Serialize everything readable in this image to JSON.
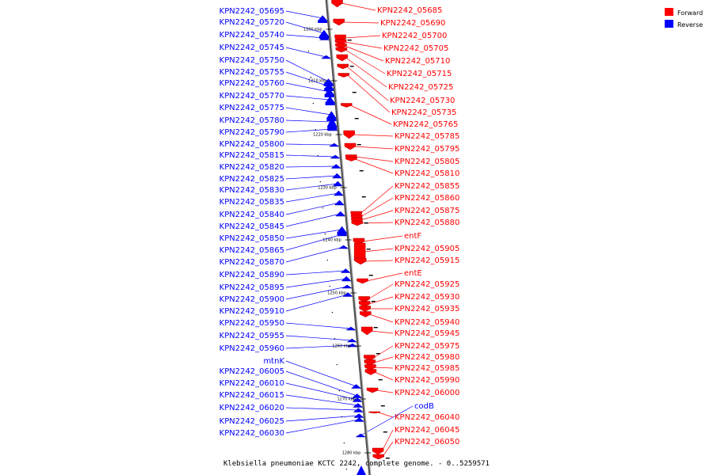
{
  "title": "Klebsiella pneumoniae KCTC 2242, complete genome. - 0..5259571",
  "legend": [
    {
      "label": "Forward",
      "color": "#ff0000"
    },
    {
      "label": "Reverse",
      "color": "#0000ff"
    }
  ],
  "colors": {
    "forward": "#ff0000",
    "reverse": "#0000ff",
    "backbone": "#888888"
  },
  "scale_ticks": [
    "1200 kbp",
    "1210 kbp",
    "1220 kbp",
    "1230 kbp",
    "1240 kbp",
    "1250 kbp",
    "1260 kbp",
    "1270 kbp",
    "1280 kbp"
  ],
  "reverse_genes": [
    "KPN2242_05695",
    "KPN2242_05720",
    "KPN2242_05740",
    "KPN2242_05745",
    "KPN2242_05750",
    "KPN2242_05755",
    "KPN2242_05760",
    "KPN2242_05770",
    "KPN2242_05775",
    "KPN2242_05780",
    "KPN2242_05790",
    "KPN2242_05800",
    "KPN2242_05815",
    "KPN2242_05820",
    "KPN2242_05825",
    "KPN2242_05830",
    "KPN2242_05835",
    "KPN2242_05840",
    "KPN2242_05845",
    "KPN2242_05850",
    "KPN2242_05865",
    "KPN2242_05870",
    "KPN2242_05890",
    "KPN2242_05895",
    "KPN2242_05900",
    "KPN2242_05910",
    "KPN2242_05950",
    "KPN2242_05955",
    "KPN2242_05960",
    "mtnK",
    "KPN2242_06005",
    "KPN2242_06010",
    "KPN2242_06015",
    "KPN2242_06020",
    "KPN2242_06025",
    "KPN2242_06030",
    "codB"
  ],
  "forward_genes": [
    "KPN2242_05685",
    "KPN2242_05690",
    "KPN2242_05700",
    "KPN2242_05705",
    "KPN2242_05710",
    "KPN2242_05715",
    "KPN2242_05725",
    "KPN2242_05730",
    "KPN2242_05735",
    "KPN2242_05765",
    "KPN2242_05785",
    "KPN2242_05795",
    "KPN2242_05805",
    "KPN2242_05810",
    "KPN2242_05855",
    "KPN2242_05860",
    "KPN2242_05875",
    "KPN2242_05880",
    "entF",
    "KPN2242_05905",
    "KPN2242_05915",
    "entE",
    "KPN2242_05925",
    "KPN2242_05930",
    "KPN2242_05935",
    "KPN2242_05940",
    "KPN2242_05945",
    "KPN2242_05975",
    "KPN2242_05980",
    "KPN2242_05985",
    "KPN2242_05990",
    "KPN2242_06000",
    "KPN2242_06040",
    "KPN2242_06045",
    "KPN2242_06050"
  ]
}
